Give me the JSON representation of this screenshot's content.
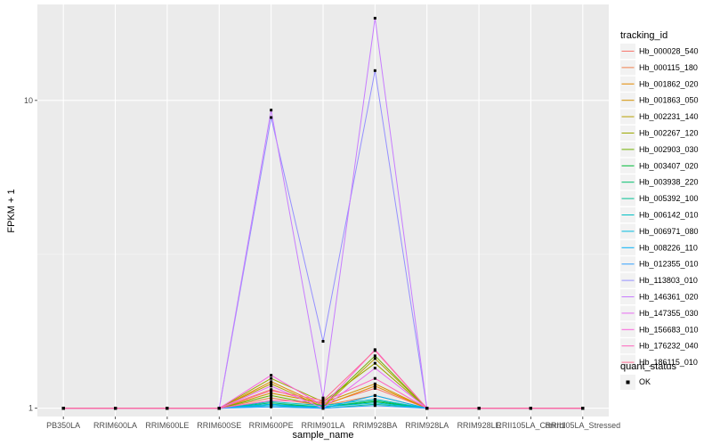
{
  "chart_data": {
    "type": "line",
    "title": "",
    "xlabel": "sample_name",
    "ylabel": "FPKM + 1",
    "y_scale": "log",
    "ylim": [
      0.94,
      20.5
    ],
    "yticks": [
      1,
      10
    ],
    "ytick_labels": [
      "1",
      "10"
    ],
    "grid": true,
    "background": "#ebebeb",
    "legend_position": "right",
    "categories": [
      "PB350LA",
      "RRIM600LA",
      "RRIM600LE",
      "RRIM600SE",
      "RRIM600PE",
      "RRIM901LA",
      "RRIM928BA",
      "RRIM928LA",
      "RRIM928LE",
      "RRII105LA_Control",
      "RRII105LA_Stressed"
    ],
    "legend": {
      "title": "tracking_id",
      "quant_title": "quant_status",
      "quant_label": "OK"
    },
    "series": [
      {
        "name": "Hb_000028_540",
        "color": "#F8766D",
        "values": [
          1,
          1,
          1,
          1,
          1.15,
          1.03,
          1.16,
          1,
          1,
          1,
          1
        ]
      },
      {
        "name": "Hb_000115_180",
        "color": "#F07F4B",
        "values": [
          1,
          1,
          1,
          1,
          1.08,
          1.02,
          1.1,
          1,
          1,
          1,
          1
        ]
      },
      {
        "name": "Hb_001862_020",
        "color": "#E38900",
        "values": [
          1,
          1,
          1,
          1,
          1.22,
          1.02,
          1.18,
          1,
          1,
          1,
          1
        ]
      },
      {
        "name": "Hb_001863_050",
        "color": "#D39200",
        "values": [
          1,
          1,
          1,
          1,
          1.12,
          1.04,
          1.2,
          1,
          1,
          1,
          1
        ]
      },
      {
        "name": "Hb_002231_140",
        "color": "#B79F00",
        "values": [
          1,
          1,
          1,
          1,
          1.2,
          1.01,
          1.45,
          1,
          1,
          1,
          1
        ]
      },
      {
        "name": "Hb_002267_120",
        "color": "#9CA700",
        "values": [
          1,
          1,
          1,
          1,
          1.25,
          1.05,
          1.4,
          1,
          1,
          1,
          1
        ]
      },
      {
        "name": "Hb_002903_030",
        "color": "#70B000",
        "values": [
          1,
          1,
          1,
          1,
          1.1,
          1.02,
          1.48,
          1,
          1,
          1,
          1
        ]
      },
      {
        "name": "Hb_003407_020",
        "color": "#00BA38",
        "values": [
          1,
          1,
          1,
          1,
          1.03,
          1.01,
          1.05,
          1,
          1,
          1,
          1
        ]
      },
      {
        "name": "Hb_003938_220",
        "color": "#00BE6B",
        "values": [
          1,
          1,
          1,
          1,
          1.04,
          1.01,
          1.06,
          1,
          1,
          1,
          1
        ]
      },
      {
        "name": "Hb_005392_100",
        "color": "#00C092",
        "values": [
          1,
          1,
          1,
          1,
          1.02,
          1.0,
          1.03,
          1,
          1,
          1,
          1
        ]
      },
      {
        "name": "Hb_006142_010",
        "color": "#00BFC4",
        "values": [
          1,
          1,
          1,
          1,
          1.05,
          1.02,
          1.07,
          1,
          1,
          1,
          1
        ]
      },
      {
        "name": "Hb_006971_080",
        "color": "#00BAE0",
        "values": [
          1,
          1,
          1,
          1,
          1.02,
          1.01,
          1.04,
          1,
          1,
          1,
          1
        ]
      },
      {
        "name": "Hb_008226_110",
        "color": "#00B0F6",
        "values": [
          1,
          1,
          1,
          1,
          1.03,
          1.0,
          1.1,
          1,
          1,
          1,
          1
        ]
      },
      {
        "name": "Hb_012355_010",
        "color": "#35A2FF",
        "values": [
          1,
          1,
          1,
          1,
          1.01,
          1.0,
          1.02,
          1,
          1,
          1,
          1
        ]
      },
      {
        "name": "Hb_113803_010",
        "color": "#9590FF",
        "values": [
          1,
          1,
          1,
          1,
          8.8,
          1.65,
          12.5,
          1,
          1,
          1,
          1
        ]
      },
      {
        "name": "Hb_146361_020",
        "color": "#C77CFF",
        "values": [
          1,
          1,
          1,
          1,
          9.3,
          1.08,
          18.5,
          1,
          1,
          1,
          1
        ]
      },
      {
        "name": "Hb_147355_030",
        "color": "#E76BF3",
        "values": [
          1,
          1,
          1,
          1,
          1.18,
          1.0,
          1.35,
          1,
          1,
          1,
          1
        ]
      },
      {
        "name": "Hb_156683_010",
        "color": "#FA62DB",
        "values": [
          1,
          1,
          1,
          1,
          1.28,
          1.02,
          1.55,
          1,
          1,
          1,
          1
        ]
      },
      {
        "name": "Hb_176232_040",
        "color": "#FF62BC",
        "values": [
          1,
          1,
          1,
          1,
          1.06,
          1.05,
          1.25,
          1,
          1,
          1,
          1
        ]
      },
      {
        "name": "Hb_186115_010",
        "color": "#FF6C91",
        "values": [
          1,
          1,
          1,
          1,
          1.14,
          1.06,
          1.54,
          1,
          1,
          1,
          1
        ]
      }
    ]
  }
}
